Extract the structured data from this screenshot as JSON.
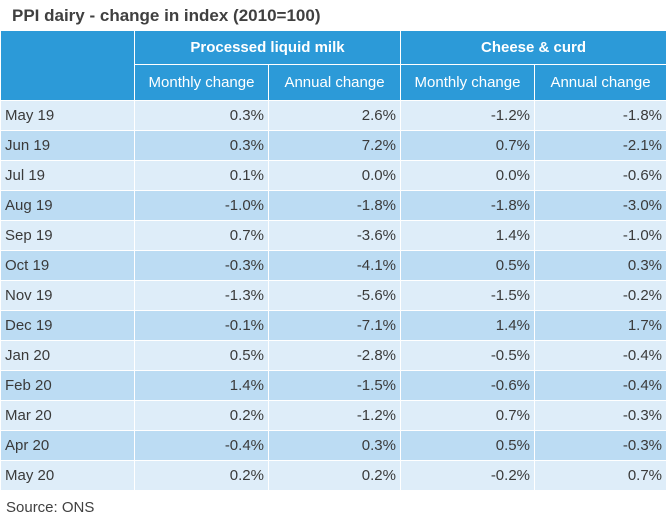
{
  "title": "PPI dairy - change in index (2010=100)",
  "source": "Source: ONS",
  "chart_data": {
    "type": "table",
    "title": "PPI dairy - change in index (2010=100)",
    "groups": [
      "Processed liquid milk",
      "Cheese & curd"
    ],
    "columns": [
      "Monthly change",
      "Annual change",
      "Monthly change",
      "Annual change"
    ],
    "rows": [
      {
        "label": "May 19",
        "values": [
          "0.3%",
          "2.6%",
          "-1.2%",
          "-1.8%"
        ]
      },
      {
        "label": "Jun 19",
        "values": [
          "0.3%",
          "7.2%",
          "0.7%",
          "-2.1%"
        ]
      },
      {
        "label": "Jul 19",
        "values": [
          "0.1%",
          "0.0%",
          "0.0%",
          "-0.6%"
        ]
      },
      {
        "label": "Aug 19",
        "values": [
          "-1.0%",
          "-1.8%",
          "-1.8%",
          "-3.0%"
        ]
      },
      {
        "label": "Sep 19",
        "values": [
          "0.7%",
          "-3.6%",
          "1.4%",
          "-1.0%"
        ]
      },
      {
        "label": "Oct 19",
        "values": [
          "-0.3%",
          "-4.1%",
          "0.5%",
          "0.3%"
        ]
      },
      {
        "label": "Nov 19",
        "values": [
          "-1.3%",
          "-5.6%",
          "-1.5%",
          "-0.2%"
        ]
      },
      {
        "label": "Dec 19",
        "values": [
          "-0.1%",
          "-7.1%",
          "1.4%",
          "1.7%"
        ]
      },
      {
        "label": "Jan 20",
        "values": [
          "0.5%",
          "-2.8%",
          "-0.5%",
          "-0.4%"
        ]
      },
      {
        "label": "Feb 20",
        "values": [
          "1.4%",
          "-1.5%",
          "-0.6%",
          "-0.4%"
        ]
      },
      {
        "label": "Mar 20",
        "values": [
          "0.2%",
          "-1.2%",
          "0.7%",
          "-0.3%"
        ]
      },
      {
        "label": "Apr 20",
        "values": [
          "-0.4%",
          "0.3%",
          "0.5%",
          "-0.3%"
        ]
      },
      {
        "label": "May 20",
        "values": [
          "0.2%",
          "0.2%",
          "-0.2%",
          "0.7%"
        ]
      }
    ]
  },
  "colors": {
    "header_bg": "#2c9ad8",
    "row_light": "#deedf9",
    "row_dark": "#bcdcf3"
  }
}
